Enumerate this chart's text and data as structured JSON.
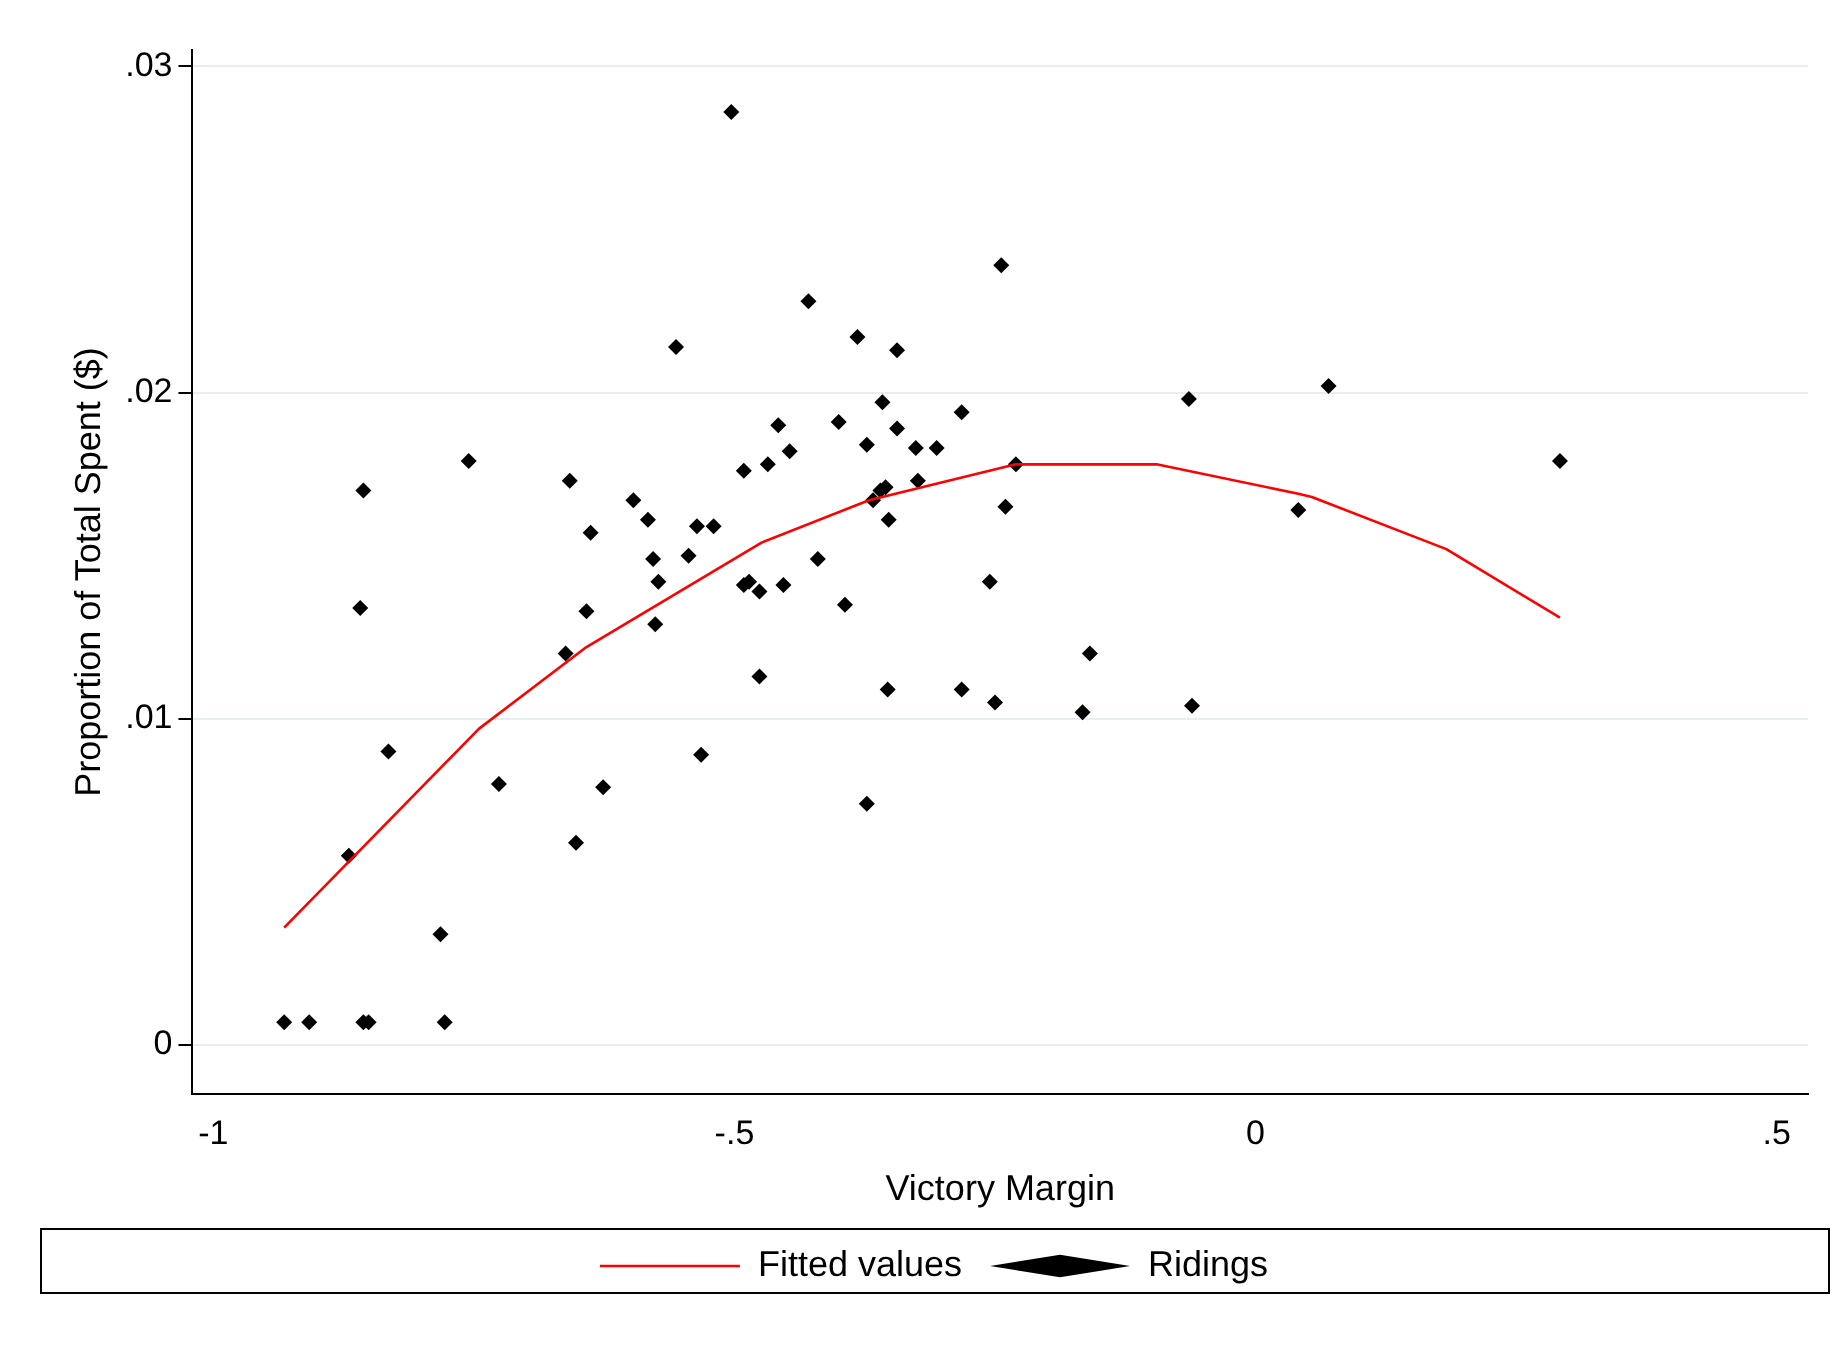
{
  "chart_data": {
    "type": "scatter",
    "xlabel": "Victory Margin",
    "ylabel": "Proportion of Total Spent ($)",
    "xlim": [
      -1.02,
      0.53
    ],
    "ylim": [
      -0.0015,
      0.0305
    ],
    "xticks": [
      -1,
      {
        "value": -0.5,
        "label": "-.5"
      },
      0,
      {
        "value": 0.5,
        "label": ".5"
      }
    ],
    "yticks": [
      0,
      {
        "value": 0.01,
        "label": ".01"
      },
      {
        "value": 0.02,
        "label": ".02"
      },
      {
        "value": 0.03,
        "label": ".03"
      }
    ],
    "grid": "y",
    "legend": "bottom",
    "series": [
      {
        "name": "Fitted values",
        "type": "line",
        "color": "#ff0000",
        "marker": "none",
        "x": [
          -0.932,
          -0.745,
          -0.642,
          -0.474,
          -0.371,
          -0.23,
          -0.165,
          -0.095,
          0.041,
          0.054,
          0.183,
          0.292
        ],
        "values": [
          0.0036,
          0.0097,
          0.0122,
          0.0154,
          0.0167,
          0.0178,
          0.0178,
          0.0178,
          0.0169,
          0.0168,
          0.0152,
          0.0131
        ]
      },
      {
        "name": "Ridings",
        "type": "scatter",
        "color": "#000000",
        "marker": "diamond",
        "x": [
          -0.503,
          -0.244,
          -0.429,
          -0.556,
          -0.382,
          -0.344,
          -0.358,
          -0.064,
          -0.282,
          -0.458,
          -0.4,
          -0.344,
          -0.373,
          -0.326,
          -0.306,
          -0.447,
          -0.491,
          -0.468,
          -0.23,
          -0.355,
          -0.36,
          -0.367,
          -0.324,
          -0.352,
          -0.24,
          0.041,
          -0.536,
          -0.52,
          -0.544,
          -0.42,
          -0.491,
          -0.486,
          -0.476,
          -0.453,
          -0.255,
          -0.394,
          -0.476,
          -0.159,
          -0.353,
          -0.282,
          -0.25,
          -0.166,
          -0.061,
          -0.532,
          -0.373,
          0.07,
          0.292,
          -0.856,
          -0.755,
          -0.658,
          -0.638,
          -0.597,
          -0.583,
          -0.578,
          -0.859,
          -0.573,
          -0.642,
          -0.662,
          -0.576,
          -0.832,
          -0.726,
          -0.626,
          -0.652,
          -0.87,
          -0.782,
          -0.932,
          -0.908,
          -0.856,
          -0.851,
          -0.778
        ],
        "values": [
          0.0286,
          0.0239,
          0.0228,
          0.0214,
          0.0217,
          0.0213,
          0.0197,
          0.0198,
          0.0194,
          0.019,
          0.0191,
          0.0189,
          0.0184,
          0.0183,
          0.0183,
          0.0182,
          0.0176,
          0.0178,
          0.0178,
          0.0171,
          0.017,
          0.0167,
          0.0173,
          0.0161,
          0.0165,
          0.0164,
          0.0159,
          0.0159,
          0.015,
          0.0149,
          0.0141,
          0.0142,
          0.0139,
          0.0141,
          0.0142,
          0.0135,
          0.0113,
          0.012,
          0.0109,
          0.0109,
          0.0105,
          0.0102,
          0.0104,
          0.0089,
          0.0074,
          0.0202,
          0.0179,
          0.017,
          0.0179,
          0.0173,
          0.0157,
          0.0167,
          0.0161,
          0.0149,
          0.0134,
          0.0142,
          0.0133,
          0.012,
          0.0129,
          0.009,
          0.008,
          0.0079,
          0.0062,
          0.0058,
          0.0034,
          0.0007,
          0.0007,
          0.0007,
          0.0007,
          0.0007
        ]
      }
    ]
  }
}
